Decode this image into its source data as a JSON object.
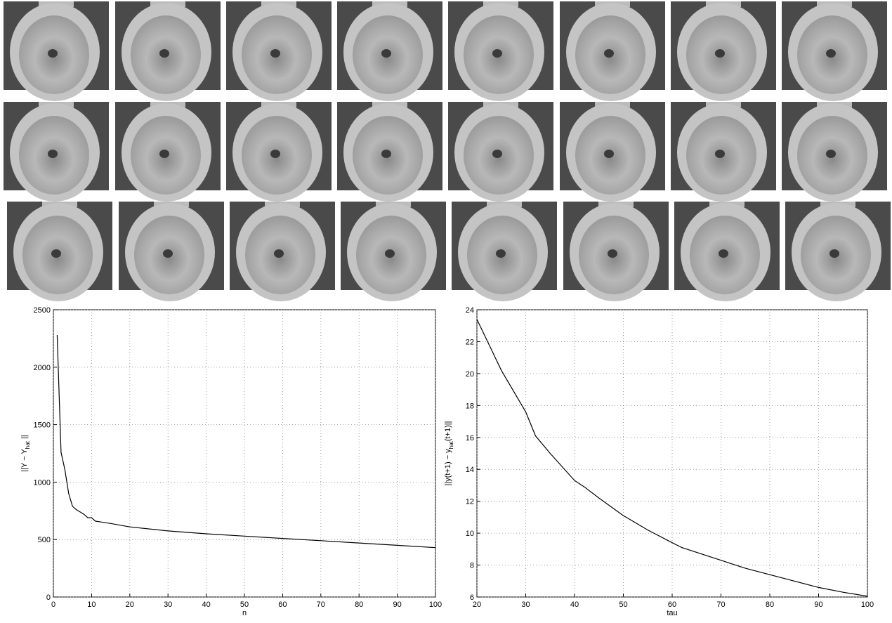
{
  "chart_data": [
    {
      "type": "line",
      "xlabel": "n",
      "ylabel": [
        "||Y − Y",
        "hat",
        " ||"
      ],
      "color": "#000000",
      "grid": true,
      "x": [
        1,
        2,
        3,
        4,
        5,
        6,
        7,
        8,
        9,
        10,
        11,
        12,
        15,
        20,
        30,
        40,
        50,
        60,
        70,
        80,
        90,
        100
      ],
      "values": [
        2280,
        1260,
        1110,
        900,
        790,
        760,
        740,
        720,
        690,
        690,
        660,
        655,
        640,
        610,
        575,
        550,
        530,
        510,
        490,
        470,
        450,
        430
      ],
      "xlim": [
        0,
        100
      ],
      "xticks": [
        0,
        10,
        20,
        30,
        40,
        50,
        60,
        70,
        80,
        90,
        100
      ],
      "ylim": [
        0,
        2500
      ],
      "yticks": [
        0,
        500,
        1000,
        1500,
        2000,
        2500
      ]
    },
    {
      "type": "line",
      "xlabel": "tau",
      "ylabel": [
        "||y(t+1) − y",
        "hat",
        "(t+1)||"
      ],
      "color": "#000000",
      "grid": true,
      "x": [
        20,
        25,
        30,
        32,
        35,
        40,
        42,
        45,
        50,
        55,
        60,
        62,
        65,
        70,
        72,
        75,
        80,
        85,
        90,
        95,
        100
      ],
      "values": [
        23.4,
        20.2,
        17.6,
        16.1,
        15.0,
        13.3,
        12.9,
        12.2,
        11.1,
        10.2,
        9.4,
        9.1,
        8.8,
        8.3,
        8.1,
        7.8,
        7.4,
        7.0,
        6.6,
        6.3,
        6.05
      ],
      "xlim": [
        20,
        100
      ],
      "xticks": [
        20,
        30,
        40,
        50,
        60,
        70,
        80,
        90,
        100
      ],
      "ylim": [
        6,
        24
      ],
      "yticks": [
        6,
        8,
        10,
        12,
        14,
        16,
        18,
        20,
        22,
        24
      ]
    }
  ]
}
